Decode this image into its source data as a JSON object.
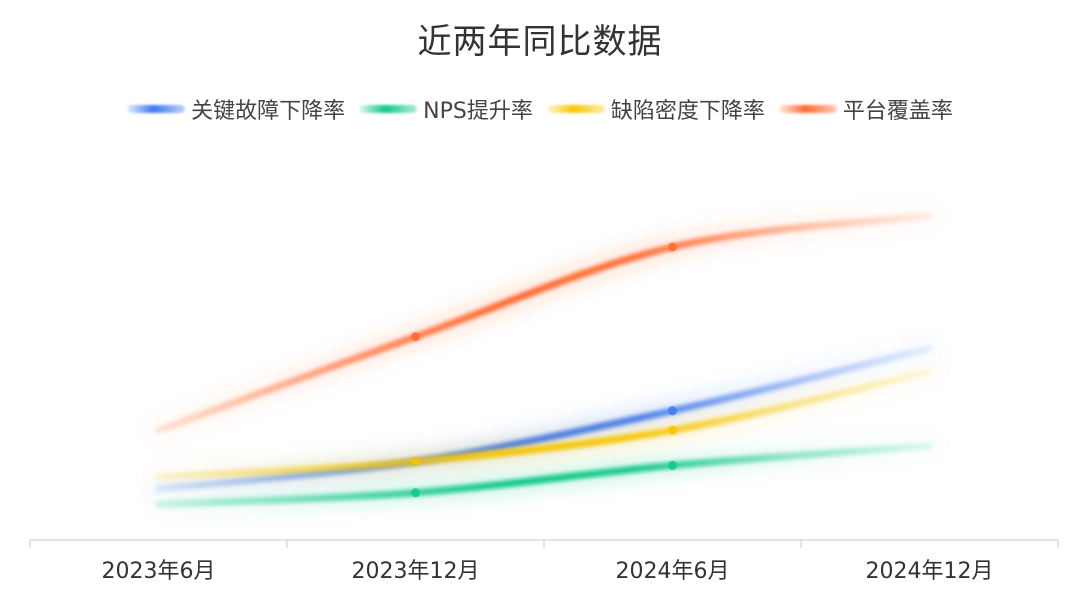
{
  "chart_data": {
    "type": "line",
    "title": "近两年同比数据",
    "categories": [
      "2023年6月",
      "2023年12月",
      "2024年6月",
      "2024年12月"
    ],
    "series": [
      {
        "name": "关键故障下降率",
        "color": "#3b78f0",
        "values": [
          8,
          15,
          28,
          44
        ]
      },
      {
        "name": "NPS提升率",
        "color": "#10c887",
        "values": [
          4,
          7,
          14,
          19
        ]
      },
      {
        "name": "缺陷密度下降率",
        "color": "#f7c600",
        "values": [
          11,
          15,
          23,
          38
        ]
      },
      {
        "name": "平台覆盖率",
        "color": "#ff6a2e",
        "values": [
          23,
          47,
          70,
          78
        ]
      }
    ],
    "ylim": [
      0,
      100
    ],
    "grid": false,
    "legend": "top"
  }
}
